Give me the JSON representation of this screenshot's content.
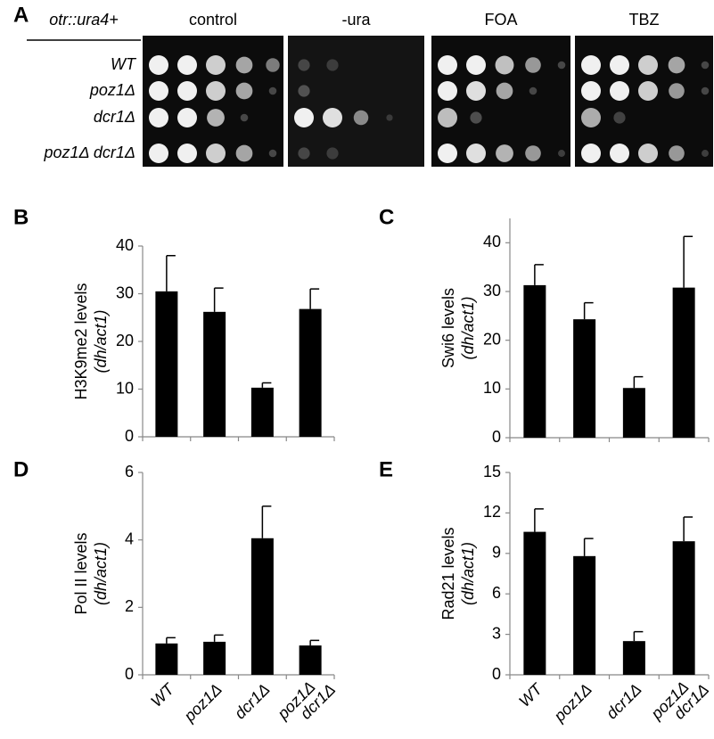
{
  "panel_a": {
    "label": "A",
    "strain_header": "otr::ura4+",
    "media": [
      "control",
      "-ura",
      "FOA",
      "TBZ"
    ],
    "strains": [
      "WT",
      "poz1Δ",
      "dcr1Δ",
      "poz1Δ dcr1Δ"
    ]
  },
  "chart_data": [
    {
      "type": "bar",
      "label": "B",
      "ylabel": "H3K9me2 levels",
      "ylabel_unit": "(dh/act1)",
      "categories": [
        null,
        null,
        null,
        null
      ],
      "values": [
        30.5,
        26.2,
        10.3,
        26.8
      ],
      "errors": [
        7.5,
        5.0,
        1.0,
        4.2
      ],
      "color": "#000000",
      "ylim": [
        0,
        40
      ],
      "yticks": [
        0,
        10,
        20,
        30,
        40
      ]
    },
    {
      "type": "bar",
      "label": "C",
      "ylabel": "Swi6 levels",
      "ylabel_unit": "(dh/act1)",
      "categories": [
        null,
        null,
        null,
        null
      ],
      "values": [
        31.3,
        24.3,
        10.2,
        30.8
      ],
      "errors": [
        4.2,
        3.4,
        2.3,
        10.5
      ],
      "color": "#000000",
      "ylim": [
        0,
        45
      ],
      "yticks": [
        0,
        10,
        20,
        30,
        40
      ]
    },
    {
      "type": "bar",
      "label": "D",
      "ylabel": "Pol II levels",
      "ylabel_unit": "(dh/act1)",
      "categories": [
        "WT",
        "poz1Δ",
        "dcr1Δ",
        "poz1Δ dcr1Δ"
      ],
      "values": [
        0.93,
        0.98,
        4.05,
        0.87
      ],
      "errors": [
        0.17,
        0.2,
        0.95,
        0.15
      ],
      "color": "#000000",
      "ylim": [
        0,
        6
      ],
      "yticks": [
        0,
        2,
        4,
        6
      ]
    },
    {
      "type": "bar",
      "label": "E",
      "ylabel": "Rad21 levels",
      "ylabel_unit": "(dh/act1)",
      "categories": [
        "WT",
        "poz1Δ",
        "dcr1Δ",
        "poz1Δ dcr1Δ"
      ],
      "values": [
        10.6,
        8.8,
        2.5,
        9.9
      ],
      "errors": [
        1.7,
        1.3,
        0.7,
        1.8
      ],
      "color": "#000000",
      "ylim": [
        0,
        15
      ],
      "yticks": [
        0,
        3,
        6,
        9,
        12,
        15
      ]
    }
  ]
}
